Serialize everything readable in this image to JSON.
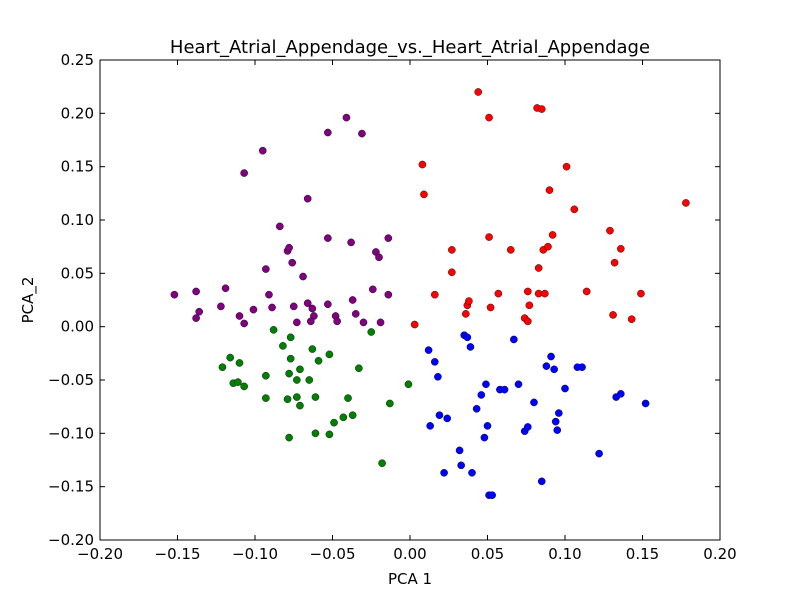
{
  "chart_data": {
    "type": "scatter",
    "title": "Heart_Atrial_Appendage_vs._Heart_Atrial_Appendage",
    "xlabel": "PCA 1",
    "ylabel": "PCA_2",
    "xlim": [
      -0.2,
      0.2
    ],
    "ylim": [
      -0.2,
      0.25
    ],
    "grid": false,
    "x_ticks": [
      "−0.20",
      "−0.15",
      "−0.10",
      "−0.05",
      "0.00",
      "0.05",
      "0.10",
      "0.15",
      "0.20"
    ],
    "y_ticks": [
      "−0.20",
      "−0.15",
      "−0.10",
      "−0.05",
      "0.00",
      "0.05",
      "0.10",
      "0.15",
      "0.20",
      "0.25"
    ],
    "series": [
      {
        "color": "#800080",
        "points": [
          [
            -0.152,
            0.03
          ],
          [
            -0.138,
            0.033
          ],
          [
            -0.136,
            0.014
          ],
          [
            -0.138,
            0.008
          ],
          [
            -0.122,
            0.019
          ],
          [
            -0.119,
            0.036
          ],
          [
            -0.107,
            0.144
          ],
          [
            -0.11,
            0.01
          ],
          [
            -0.107,
            0.003
          ],
          [
            -0.101,
            0.016
          ],
          [
            -0.095,
            0.165
          ],
          [
            -0.093,
            0.054
          ],
          [
            -0.091,
            0.03
          ],
          [
            -0.089,
            0.018
          ],
          [
            -0.084,
            0.094
          ],
          [
            -0.079,
            0.071
          ],
          [
            -0.078,
            0.074
          ],
          [
            -0.076,
            0.06
          ],
          [
            -0.075,
            0.019
          ],
          [
            -0.073,
            0.004
          ],
          [
            -0.069,
            0.047
          ],
          [
            -0.066,
            0.12
          ],
          [
            -0.066,
            0.022
          ],
          [
            -0.063,
            0.017
          ],
          [
            -0.062,
            0.01
          ],
          [
            -0.064,
            0.005
          ],
          [
            -0.053,
            0.083
          ],
          [
            -0.053,
            0.021
          ],
          [
            -0.053,
            0.182
          ],
          [
            -0.048,
            0.01
          ],
          [
            -0.047,
            0.005
          ],
          [
            -0.041,
            0.196
          ],
          [
            -0.038,
            0.079
          ],
          [
            -0.037,
            0.025
          ],
          [
            -0.035,
            0.012
          ],
          [
            -0.031,
            0.181
          ],
          [
            -0.03,
            0.004
          ],
          [
            -0.024,
            0.035
          ],
          [
            -0.022,
            0.07
          ],
          [
            -0.02,
            0.065
          ],
          [
            -0.019,
            0.004
          ],
          [
            -0.014,
            0.083
          ],
          [
            -0.014,
            0.03
          ]
        ]
      },
      {
        "color": "#008000",
        "points": [
          [
            -0.121,
            -0.038
          ],
          [
            -0.116,
            -0.029
          ],
          [
            -0.114,
            -0.053
          ],
          [
            -0.111,
            -0.052
          ],
          [
            -0.11,
            -0.034
          ],
          [
            -0.107,
            -0.056
          ],
          [
            -0.093,
            -0.046
          ],
          [
            -0.093,
            -0.067
          ],
          [
            -0.088,
            -0.003
          ],
          [
            -0.082,
            -0.018
          ],
          [
            -0.079,
            -0.068
          ],
          [
            -0.078,
            -0.044
          ],
          [
            -0.077,
            -0.03
          ],
          [
            -0.077,
            -0.01
          ],
          [
            -0.078,
            -0.104
          ],
          [
            -0.073,
            -0.066
          ],
          [
            -0.073,
            -0.05
          ],
          [
            -0.071,
            -0.04
          ],
          [
            -0.071,
            -0.074
          ],
          [
            -0.065,
            -0.05
          ],
          [
            -0.063,
            -0.021
          ],
          [
            -0.061,
            -0.066
          ],
          [
            -0.061,
            -0.1
          ],
          [
            -0.059,
            -0.032
          ],
          [
            -0.052,
            -0.101
          ],
          [
            -0.052,
            -0.026
          ],
          [
            -0.049,
            -0.09
          ],
          [
            -0.043,
            -0.085
          ],
          [
            -0.04,
            -0.067
          ],
          [
            -0.037,
            -0.083
          ],
          [
            -0.033,
            -0.039
          ],
          [
            -0.025,
            -0.005
          ],
          [
            -0.018,
            -0.128
          ],
          [
            -0.013,
            -0.072
          ],
          [
            -0.001,
            -0.054
          ]
        ]
      },
      {
        "color": "#ff0000",
        "points": [
          [
            0.003,
            0.002
          ],
          [
            0.008,
            0.152
          ],
          [
            0.009,
            0.124
          ],
          [
            0.016,
            0.03
          ],
          [
            0.027,
            0.072
          ],
          [
            0.027,
            0.051
          ],
          [
            0.036,
            0.012
          ],
          [
            0.037,
            0.02
          ],
          [
            0.038,
            0.024
          ],
          [
            0.044,
            0.22
          ],
          [
            0.051,
            0.196
          ],
          [
            0.051,
            0.084
          ],
          [
            0.052,
            0.018
          ],
          [
            0.057,
            0.031
          ],
          [
            0.065,
            0.072
          ],
          [
            0.074,
            0.008
          ],
          [
            0.076,
            0.005
          ],
          [
            0.076,
            0.033
          ],
          [
            0.077,
            0.02
          ],
          [
            0.082,
            0.205
          ],
          [
            0.085,
            0.204
          ],
          [
            0.083,
            0.055
          ],
          [
            0.083,
            0.031
          ],
          [
            0.086,
            0.072
          ],
          [
            0.087,
            0.031
          ],
          [
            0.089,
            0.075
          ],
          [
            0.09,
            0.128
          ],
          [
            0.092,
            0.086
          ],
          [
            0.101,
            0.15
          ],
          [
            0.106,
            0.11
          ],
          [
            0.114,
            0.033
          ],
          [
            0.129,
            0.09
          ],
          [
            0.131,
            0.011
          ],
          [
            0.132,
            0.06
          ],
          [
            0.136,
            0.073
          ],
          [
            0.143,
            0.007
          ],
          [
            0.149,
            0.031
          ],
          [
            0.178,
            0.116
          ]
        ]
      },
      {
        "color": "#0000ff",
        "points": [
          [
            0.012,
            -0.022
          ],
          [
            0.013,
            -0.093
          ],
          [
            0.016,
            -0.033
          ],
          [
            0.018,
            -0.047
          ],
          [
            0.019,
            -0.083
          ],
          [
            0.022,
            -0.137
          ],
          [
            0.024,
            -0.086
          ],
          [
            0.032,
            -0.116
          ],
          [
            0.033,
            -0.13
          ],
          [
            0.035,
            -0.008
          ],
          [
            0.037,
            -0.01
          ],
          [
            0.039,
            -0.019
          ],
          [
            0.04,
            -0.137
          ],
          [
            0.043,
            -0.077
          ],
          [
            0.046,
            -0.064
          ],
          [
            0.048,
            -0.104
          ],
          [
            0.049,
            -0.054
          ],
          [
            0.05,
            -0.093
          ],
          [
            0.051,
            -0.158
          ],
          [
            0.053,
            -0.158
          ],
          [
            0.058,
            -0.059
          ],
          [
            0.061,
            -0.059
          ],
          [
            0.067,
            -0.012
          ],
          [
            0.07,
            -0.054
          ],
          [
            0.074,
            -0.098
          ],
          [
            0.076,
            -0.094
          ],
          [
            0.08,
            -0.071
          ],
          [
            0.085,
            -0.145
          ],
          [
            0.088,
            -0.037
          ],
          [
            0.091,
            -0.028
          ],
          [
            0.093,
            -0.04
          ],
          [
            0.094,
            -0.089
          ],
          [
            0.095,
            -0.097
          ],
          [
            0.096,
            -0.081
          ],
          [
            0.1,
            -0.058
          ],
          [
            0.108,
            -0.038
          ],
          [
            0.111,
            -0.038
          ],
          [
            0.122,
            -0.119
          ],
          [
            0.133,
            -0.066
          ],
          [
            0.136,
            -0.063
          ],
          [
            0.152,
            -0.072
          ]
        ]
      }
    ]
  }
}
